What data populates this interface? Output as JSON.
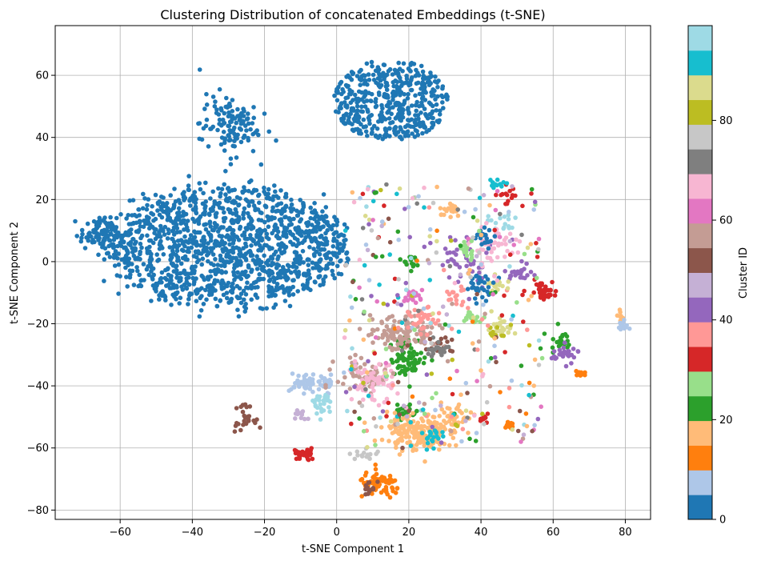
{
  "chart_data": {
    "type": "scatter",
    "title": "Clustering Distribution of concatenated Embeddings (t-SNE)",
    "xlabel": "t-SNE Component 1",
    "ylabel": "t-SNE Component 2",
    "xlim": [
      -78,
      87
    ],
    "ylim": [
      -83,
      76
    ],
    "xticks": [
      -60,
      -40,
      -20,
      0,
      20,
      40,
      60,
      80
    ],
    "yticks": [
      -80,
      -60,
      -40,
      -20,
      0,
      20,
      40,
      60
    ],
    "grid": true,
    "colormap": "tab20",
    "colorbar": {
      "label": "Cluster ID",
      "range": [
        0,
        99
      ],
      "ticks": [
        0,
        20,
        40,
        60,
        80
      ],
      "colors": [
        "#1f77b4",
        "#aec7e8",
        "#ff7f0e",
        "#ffbb78",
        "#2ca02c",
        "#98df8a",
        "#d62728",
        "#ff9896",
        "#9467bd",
        "#c5b0d5",
        "#8c564b",
        "#c49c94",
        "#e377c2",
        "#f7b6d2",
        "#7f7f7f",
        "#c7c7c7",
        "#bcbd22",
        "#dbdb8d",
        "#17becf",
        "#9edae5"
      ]
    },
    "clusters_approx": [
      {
        "cluster_color": "#1f77b4",
        "region": "large left mass",
        "center": [
          -30,
          5
        ],
        "spread": [
          20,
          14
        ],
        "n": 1400
      },
      {
        "cluster_color": "#1f77b4",
        "region": "upper-left lobe",
        "center": [
          -30,
          44
        ],
        "spread": [
          4,
          5
        ],
        "n": 120
      },
      {
        "cluster_color": "#1f77b4",
        "region": "upper-right blob",
        "center": [
          15,
          52
        ],
        "spread": [
          9,
          8
        ],
        "n": 450
      },
      {
        "cluster_color": "#2ca02c",
        "center": [
          20,
          -31
        ],
        "spread": [
          2.5,
          3
        ],
        "n": 70
      },
      {
        "cluster_color": "#2ca02c",
        "center": [
          19,
          -48
        ],
        "spread": [
          1.5,
          1.5
        ],
        "n": 25
      },
      {
        "cluster_color": "#2ca02c",
        "center": [
          20,
          0
        ],
        "spread": [
          1,
          1
        ],
        "n": 15
      },
      {
        "cluster_color": "#2ca02c",
        "center": [
          62,
          -25
        ],
        "spread": [
          1.5,
          2
        ],
        "n": 20
      },
      {
        "cluster_color": "#ffbb78",
        "center": [
          22,
          -55
        ],
        "spread": [
          4,
          3
        ],
        "n": 170
      },
      {
        "cluster_color": "#ffbb78",
        "center": [
          32,
          -51
        ],
        "spread": [
          3,
          3
        ],
        "n": 60
      },
      {
        "cluster_color": "#ffbb78",
        "center": [
          32,
          16
        ],
        "spread": [
          1.5,
          1
        ],
        "n": 20
      },
      {
        "cluster_color": "#ffbb78",
        "center": [
          79,
          -18
        ],
        "spread": [
          0.8,
          1
        ],
        "n": 10
      },
      {
        "cluster_color": "#ff7f0e",
        "center": [
          12,
          -72
        ],
        "spread": [
          3,
          2
        ],
        "n": 70
      },
      {
        "cluster_color": "#ff7f0e",
        "center": [
          48,
          -53
        ],
        "spread": [
          0.8,
          0.8
        ],
        "n": 15
      },
      {
        "cluster_color": "#ff7f0e",
        "center": [
          67,
          -36
        ],
        "spread": [
          0.8,
          0.8
        ],
        "n": 10
      },
      {
        "cluster_color": "#d62728",
        "center": [
          -9,
          -62
        ],
        "spread": [
          1.5,
          1
        ],
        "n": 35
      },
      {
        "cluster_color": "#d62728",
        "center": [
          57,
          -9
        ],
        "spread": [
          2,
          1.5
        ],
        "n": 40
      },
      {
        "cluster_color": "#d62728",
        "center": [
          41,
          -50
        ],
        "spread": [
          0.8,
          0.8
        ],
        "n": 10
      },
      {
        "cluster_color": "#d62728",
        "center": [
          48,
          21
        ],
        "spread": [
          2,
          1.5
        ],
        "n": 15
      },
      {
        "cluster_color": "#8c564b",
        "center": [
          -26,
          -50
        ],
        "spread": [
          1.5,
          2
        ],
        "n": 25
      },
      {
        "cluster_color": "#8c564b",
        "center": [
          9,
          -73
        ],
        "spread": [
          1,
          1
        ],
        "n": 15
      },
      {
        "cluster_color": "#8c564b",
        "center": [
          29,
          -28
        ],
        "spread": [
          1.5,
          1.5
        ],
        "n": 20
      },
      {
        "cluster_color": "#aec7e8",
        "center": [
          -9,
          -39
        ],
        "spread": [
          2,
          1.5
        ],
        "n": 40
      },
      {
        "cluster_color": "#aec7e8",
        "center": [
          -3,
          -39
        ],
        "spread": [
          1.5,
          1.5
        ],
        "n": 25
      },
      {
        "cluster_color": "#aec7e8",
        "center": [
          79,
          -21
        ],
        "spread": [
          0.8,
          0.8
        ],
        "n": 15
      },
      {
        "cluster_color": "#9edae5",
        "center": [
          -4,
          -46
        ],
        "spread": [
          2,
          2
        ],
        "n": 25
      },
      {
        "cluster_color": "#9edae5",
        "center": [
          46,
          12
        ],
        "spread": [
          2,
          1.5
        ],
        "n": 15
      },
      {
        "cluster_color": "#c49c94",
        "center": [
          18,
          -23
        ],
        "spread": [
          5,
          3
        ],
        "n": 110
      },
      {
        "cluster_color": "#c49c94",
        "center": [
          8,
          -37
        ],
        "spread": [
          4,
          3
        ],
        "n": 60
      },
      {
        "cluster_color": "#9467bd",
        "center": [
          63,
          -30
        ],
        "spread": [
          2,
          1.5
        ],
        "n": 30
      },
      {
        "cluster_color": "#9467bd",
        "center": [
          51,
          -4
        ],
        "spread": [
          1.5,
          1.5
        ],
        "n": 20
      },
      {
        "cluster_color": "#9467bd",
        "center": [
          35,
          0
        ],
        "spread": [
          4,
          5
        ],
        "n": 40
      },
      {
        "cluster_color": "#f7b6d2",
        "center": [
          10,
          -39
        ],
        "spread": [
          3,
          3
        ],
        "n": 60
      },
      {
        "cluster_color": "#f7b6d2",
        "center": [
          43,
          5
        ],
        "spread": [
          3,
          3
        ],
        "n": 45
      },
      {
        "cluster_color": "#ff9896",
        "center": [
          24,
          -19
        ],
        "spread": [
          2,
          2
        ],
        "n": 35
      },
      {
        "cluster_color": "#ff9896",
        "center": [
          33,
          -11
        ],
        "spread": [
          1.5,
          1.5
        ],
        "n": 15
      },
      {
        "cluster_color": "#98df8a",
        "center": [
          36,
          4
        ],
        "spread": [
          1.5,
          1.5
        ],
        "n": 20
      },
      {
        "cluster_color": "#98df8a",
        "center": [
          38,
          -18
        ],
        "spread": [
          1.5,
          1
        ],
        "n": 15
      },
      {
        "cluster_color": "#dbdb8d",
        "center": [
          46,
          -21
        ],
        "spread": [
          1.5,
          1.5
        ],
        "n": 25
      },
      {
        "cluster_color": "#dbdb8d",
        "center": [
          44,
          -7
        ],
        "spread": [
          1.5,
          1.5
        ],
        "n": 15
      },
      {
        "cluster_color": "#17becf",
        "center": [
          27,
          -57
        ],
        "spread": [
          1.5,
          1.5
        ],
        "n": 20
      },
      {
        "cluster_color": "#17becf",
        "center": [
          45,
          25
        ],
        "spread": [
          1.5,
          1
        ],
        "n": 12
      },
      {
        "cluster_color": "#e377c2",
        "center": [
          21,
          -11
        ],
        "spread": [
          1.5,
          1
        ],
        "n": 20
      },
      {
        "cluster_color": "#1f77b4",
        "region": "small mixed-area clumps",
        "center": [
          40,
          -8
        ],
        "spread": [
          2,
          2
        ],
        "n": 30
      },
      {
        "cluster_color": "#1f77b4",
        "center": [
          41,
          8
        ],
        "spread": [
          1.5,
          1.5
        ],
        "n": 20
      },
      {
        "cluster_color": "#c7c7c7",
        "center": [
          8,
          -62
        ],
        "spread": [
          2,
          1
        ],
        "n": 15
      },
      {
        "cluster_color": "#c5b0d5",
        "center": [
          -10,
          -49
        ],
        "spread": [
          1,
          1
        ],
        "n": 12
      },
      {
        "cluster_color": "#bcbd22",
        "center": [
          44,
          -23
        ],
        "spread": [
          1,
          1
        ],
        "n": 10
      },
      {
        "cluster_color": "#7f7f7f",
        "center": [
          28,
          -28
        ],
        "spread": [
          1.5,
          1.5
        ],
        "n": 20
      },
      {
        "cluster_color": "scatter",
        "region": "mixed background",
        "center": [
          25,
          -25
        ],
        "spread": [
          15,
          22
        ],
        "n": 350
      }
    ]
  }
}
